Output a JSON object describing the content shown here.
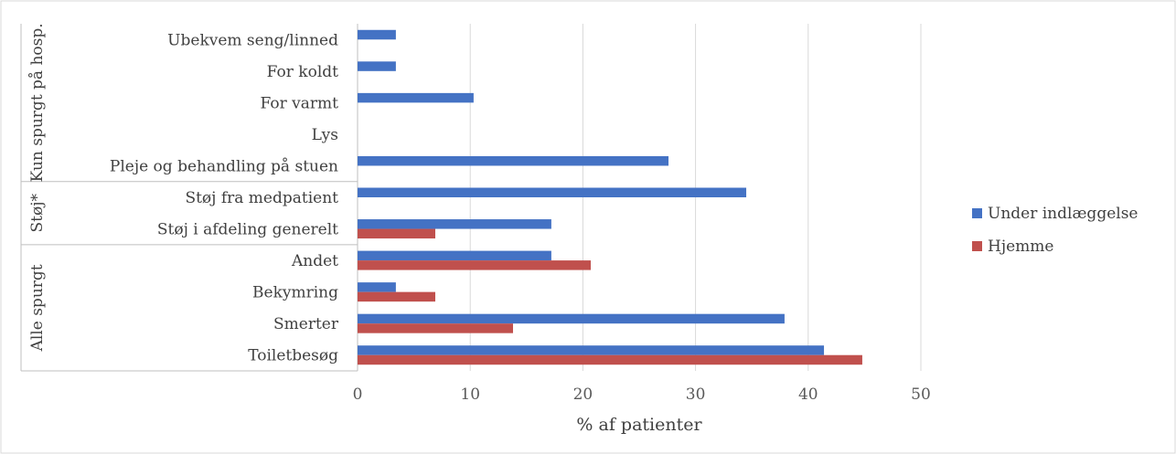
{
  "chart_data": {
    "type": "bar",
    "orientation": "horizontal",
    "categories": [
      "Ubekvem seng/linned",
      "For koldt",
      "For varmt",
      "Lys",
      "Pleje og behandling på stuen",
      "Støj fra medpatient",
      "Støj i afdeling generelt",
      "Andet",
      "Bekymring",
      "Smerter",
      "Toiletbesøg"
    ],
    "groups": [
      {
        "label": "Kun spurgt på hosp.",
        "categories": [
          "Ubekvem seng/linned",
          "For koldt",
          "For varmt",
          "Lys",
          "Pleje og behandling på stuen"
        ]
      },
      {
        "label": "Støj*",
        "categories": [
          "Støj fra medpatient",
          "Støj i afdeling generelt"
        ]
      },
      {
        "label": "Alle spurgt",
        "categories": [
          "Andet",
          "Bekymring",
          "Smerter",
          "Toiletbesøg"
        ]
      }
    ],
    "series": [
      {
        "name": "Under indlæggelse",
        "color": "#4472C4",
        "values": [
          3.4,
          3.4,
          10.3,
          0,
          27.6,
          34.5,
          17.2,
          17.2,
          3.4,
          37.9,
          41.4
        ]
      },
      {
        "name": "Hjemme",
        "color": "#C0504D",
        "values": [
          null,
          null,
          null,
          null,
          null,
          null,
          6.9,
          20.7,
          6.9,
          13.8,
          44.8
        ]
      }
    ],
    "xlabel": "% af patienter",
    "xlim": [
      0,
      50
    ],
    "xticks": [
      0,
      10,
      20,
      30,
      40,
      50
    ],
    "grid": true,
    "legend_position": "right"
  }
}
